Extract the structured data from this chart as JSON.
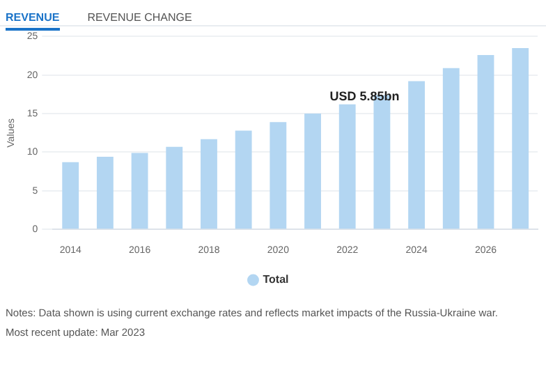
{
  "chart_data": {
    "type": "bar",
    "ylabel": "Values",
    "categories": [
      "2014",
      null,
      "2016",
      null,
      "2018",
      null,
      "2020",
      null,
      "2022",
      null,
      "2024",
      null,
      "2026",
      null
    ],
    "series": [
      {
        "name": "Total",
        "color": "#b3d6f2",
        "values": [
          8.7,
          9.4,
          9.9,
          10.7,
          11.7,
          12.8,
          13.9,
          15.0,
          16.2,
          17.4,
          19.2,
          20.9,
          22.6,
          23.5
        ]
      }
    ],
    "ylim": [
      0,
      25
    ],
    "yticks": [
      0,
      5,
      10,
      15,
      20,
      25
    ],
    "grid": "y",
    "legend": "bottom",
    "annotations": [
      "REVENUE",
      "REVENUE CHANGE",
      "USD 5.85bn",
      "Notes: Data shown is using current exchange rates and reflects market impacts of the Russia-Ukraine war.",
      "Most recent update: Mar 2023"
    ]
  }
}
